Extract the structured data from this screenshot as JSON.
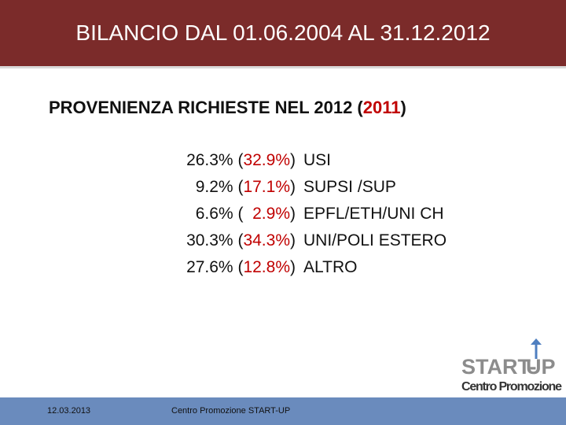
{
  "header": {
    "title": "BILANCIO DAL 01.06.2004 AL 31.12.2012"
  },
  "subtitle": {
    "text": "PROVENIENZA RICHIESTE NEL 2012 (",
    "highlight": "2011",
    "close": ")"
  },
  "rows": [
    {
      "share": "26.3%",
      "open": "(",
      "prev": "32.9%",
      "close": ")",
      "label": "USI"
    },
    {
      "share": "9.2%",
      "open": "(",
      "prev": "17.1%",
      "close": ")",
      "label": "SUPSI /SUP"
    },
    {
      "share": "6.6%",
      "open": "( ",
      "prev": " 2.9%",
      "close": ")",
      "label": "EPFL/ETH/UNI CH"
    },
    {
      "share": "30.3%",
      "open": "(",
      "prev": "34.3%",
      "close": ")",
      "label": "UNI/POLI ESTERO"
    },
    {
      "share": "27.6%",
      "open": "(",
      "prev": "12.8%",
      "close": ")",
      "label": "ALTRO"
    }
  ],
  "logo": {
    "start": "START-",
    "up": "UP",
    "sub": "Centro Promozione"
  },
  "footer": {
    "date": "12.03.2013",
    "org": "Centro Promozione START-UP"
  }
}
